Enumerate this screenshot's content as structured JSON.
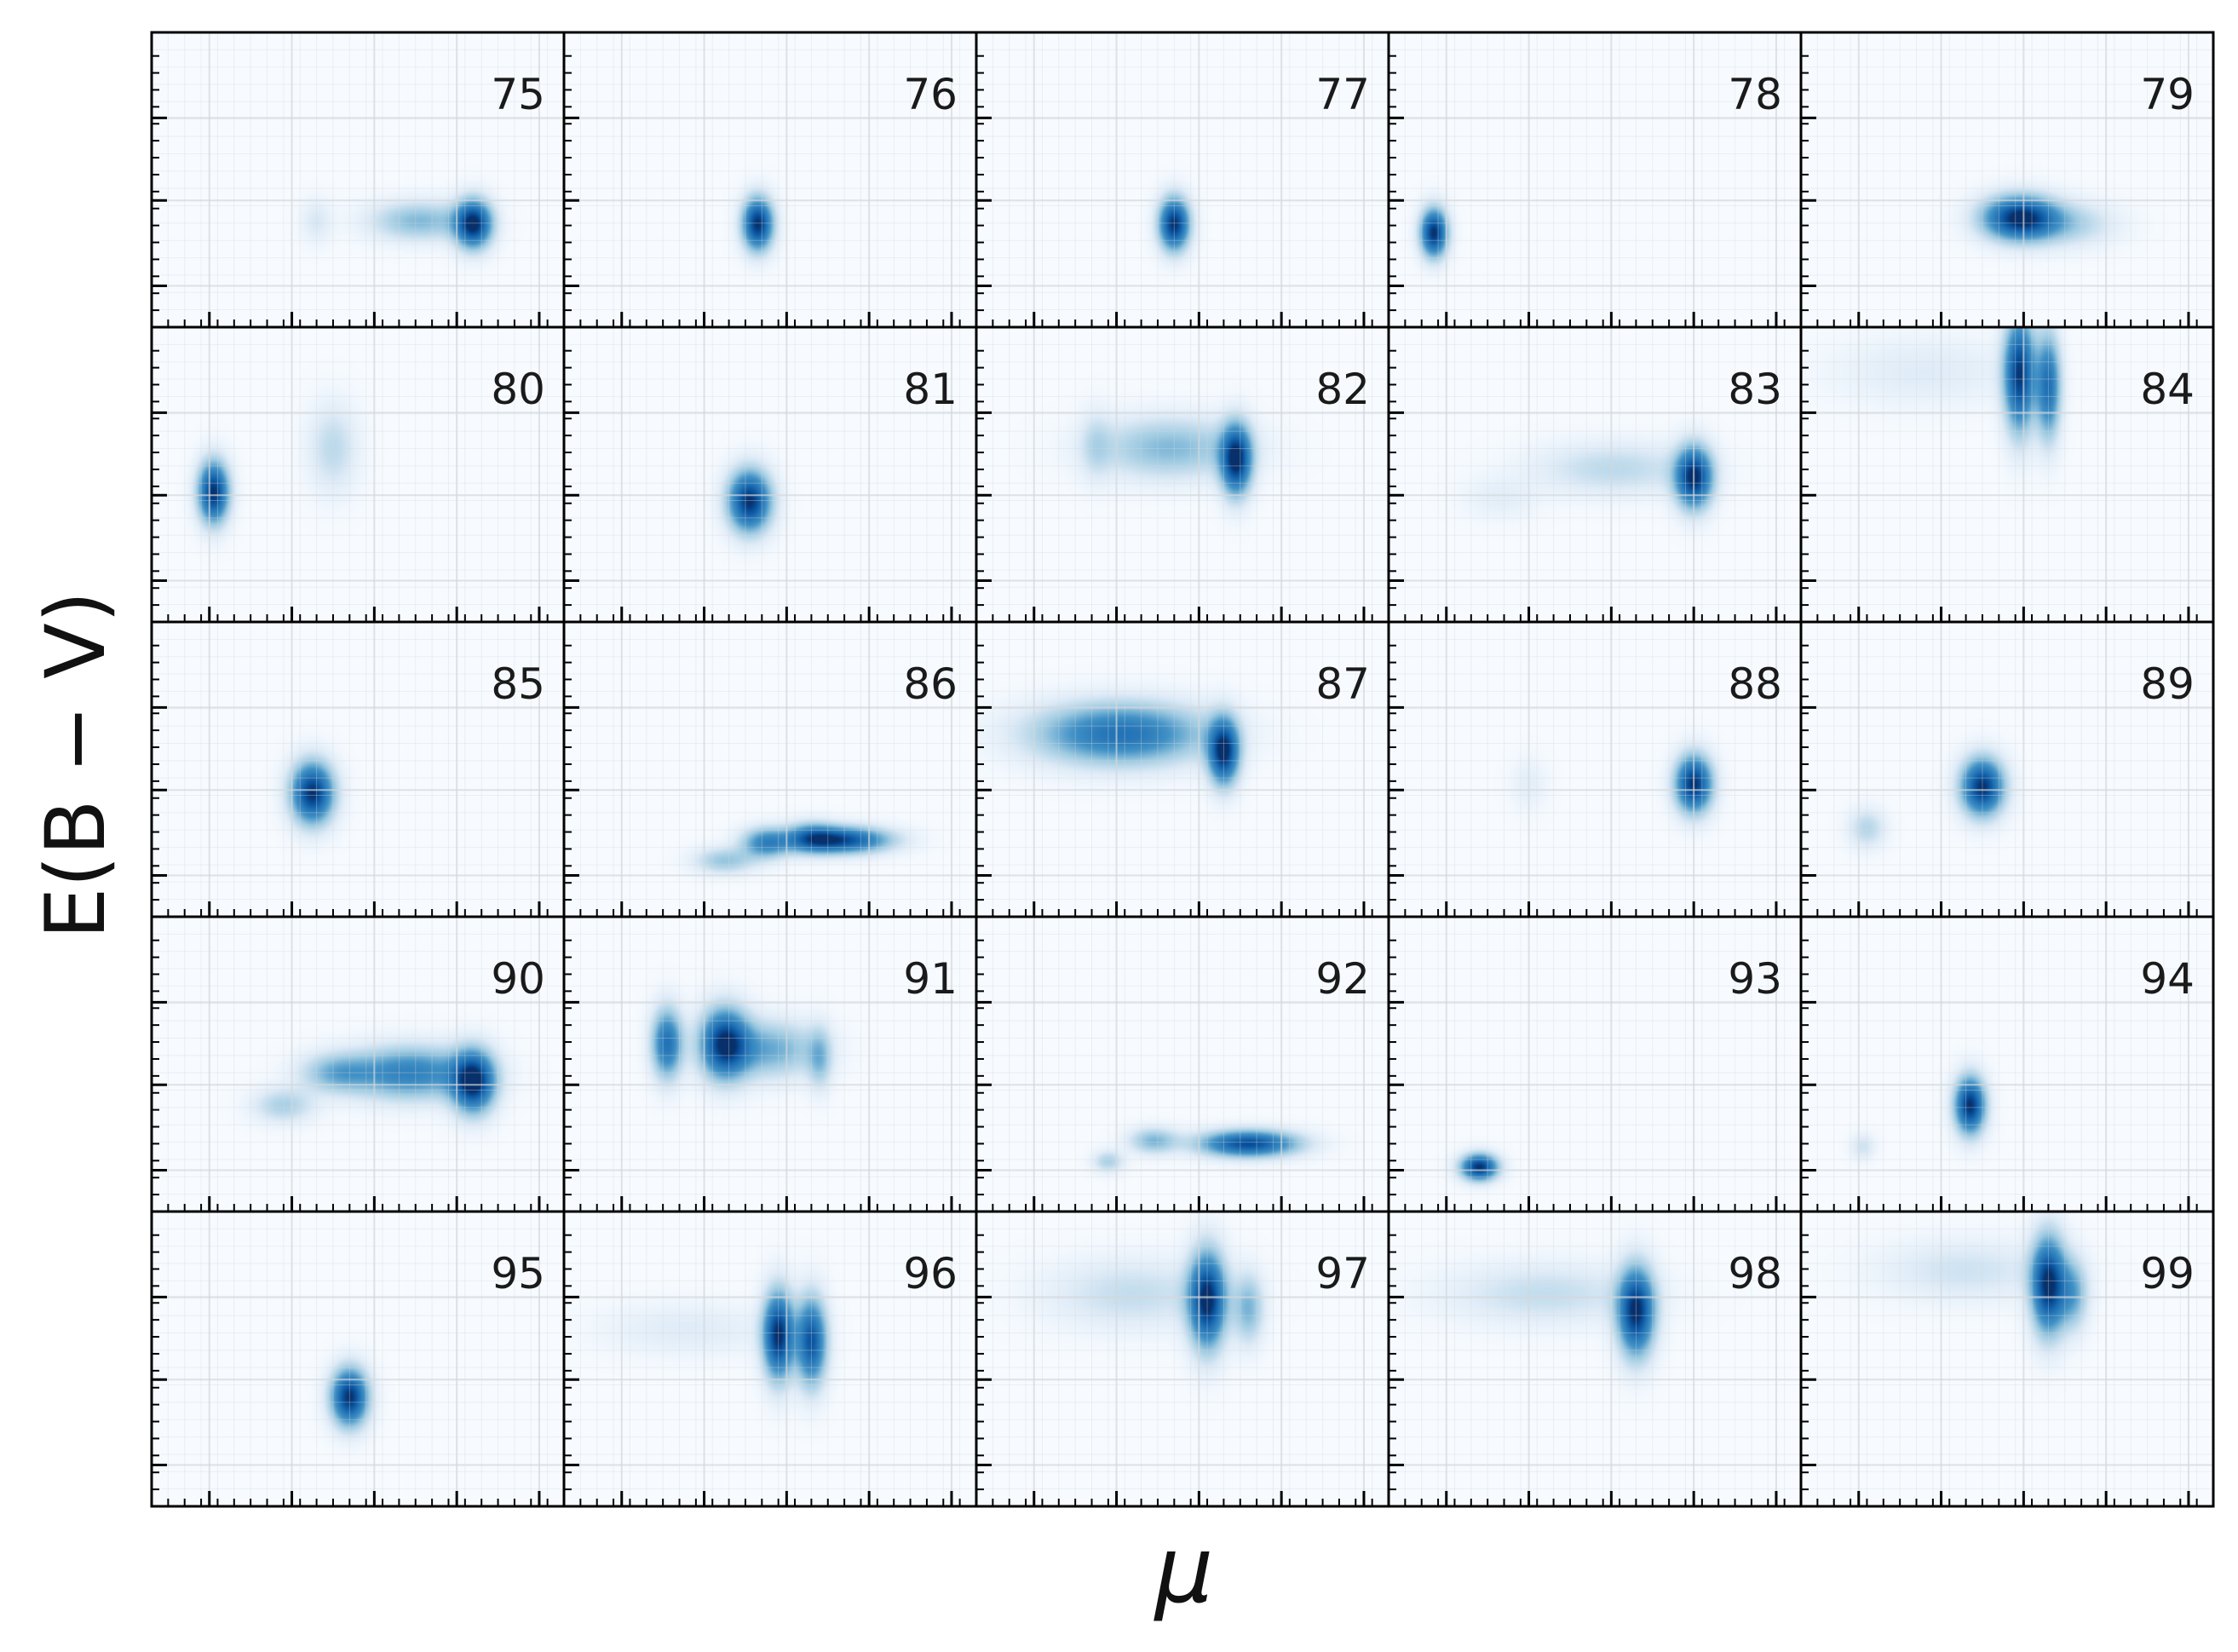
{
  "chart_data": {
    "type": "heatmap",
    "layout": {
      "rows": 5,
      "cols": 5
    },
    "xlabel": "μ",
    "ylabel": "E(B − V)",
    "grid": true,
    "tick_labels_shown": false,
    "colormap": "Blues",
    "colors": {
      "low": "#f7fbff",
      "high": "#08306b",
      "grid": "#d3d7dc",
      "frame": "#000000"
    },
    "panel_axes": {
      "xlim": [
        0,
        1
      ],
      "ylim": [
        0,
        1
      ]
    },
    "panels": [
      {
        "label": "75",
        "blobs": [
          {
            "x": 0.78,
            "y": 0.35,
            "sx": 0.03,
            "sy": 0.055,
            "amp": 1.0
          },
          {
            "x": 0.65,
            "y": 0.36,
            "sx": 0.08,
            "sy": 0.045,
            "amp": 0.35
          },
          {
            "x": 0.4,
            "y": 0.36,
            "sx": 0.025,
            "sy": 0.05,
            "amp": 0.12
          }
        ]
      },
      {
        "label": "76",
        "blobs": [
          {
            "x": 0.47,
            "y": 0.35,
            "sx": 0.025,
            "sy": 0.06,
            "amp": 1.0
          }
        ]
      },
      {
        "label": "77",
        "blobs": [
          {
            "x": 0.48,
            "y": 0.35,
            "sx": 0.025,
            "sy": 0.06,
            "amp": 1.0
          }
        ]
      },
      {
        "label": "78",
        "blobs": [
          {
            "x": 0.11,
            "y": 0.32,
            "sx": 0.022,
            "sy": 0.055,
            "amp": 1.0
          }
        ]
      },
      {
        "label": "79",
        "blobs": [
          {
            "x": 0.53,
            "y": 0.37,
            "sx": 0.06,
            "sy": 0.05,
            "amp": 1.0
          },
          {
            "x": 0.64,
            "y": 0.35,
            "sx": 0.08,
            "sy": 0.05,
            "amp": 0.25
          }
        ]
      },
      {
        "label": "80",
        "blobs": [
          {
            "x": 0.15,
            "y": 0.44,
            "sx": 0.025,
            "sy": 0.07,
            "amp": 1.0
          },
          {
            "x": 0.44,
            "y": 0.59,
            "sx": 0.04,
            "sy": 0.1,
            "amp": 0.2
          }
        ]
      },
      {
        "label": "81",
        "blobs": [
          {
            "x": 0.45,
            "y": 0.41,
            "sx": 0.035,
            "sy": 0.07,
            "amp": 1.0
          }
        ]
      },
      {
        "label": "82",
        "blobs": [
          {
            "x": 0.63,
            "y": 0.55,
            "sx": 0.025,
            "sy": 0.08,
            "amp": 1.0
          },
          {
            "x": 0.47,
            "y": 0.59,
            "sx": 0.12,
            "sy": 0.07,
            "amp": 0.35
          },
          {
            "x": 0.29,
            "y": 0.6,
            "sx": 0.025,
            "sy": 0.08,
            "amp": 0.15
          }
        ]
      },
      {
        "label": "83",
        "blobs": [
          {
            "x": 0.74,
            "y": 0.49,
            "sx": 0.03,
            "sy": 0.07,
            "amp": 1.0
          },
          {
            "x": 0.55,
            "y": 0.52,
            "sx": 0.13,
            "sy": 0.06,
            "amp": 0.2
          },
          {
            "x": 0.27,
            "y": 0.42,
            "sx": 0.06,
            "sy": 0.05,
            "amp": 0.08
          }
        ]
      },
      {
        "label": "84",
        "blobs": [
          {
            "x": 0.53,
            "y": 0.84,
            "sx": 0.025,
            "sy": 0.13,
            "amp": 0.95
          },
          {
            "x": 0.6,
            "y": 0.8,
            "sx": 0.02,
            "sy": 0.12,
            "amp": 0.7
          },
          {
            "x": 0.3,
            "y": 0.85,
            "sx": 0.15,
            "sy": 0.08,
            "amp": 0.1
          }
        ]
      },
      {
        "label": "85",
        "blobs": [
          {
            "x": 0.39,
            "y": 0.42,
            "sx": 0.035,
            "sy": 0.07,
            "amp": 1.0
          }
        ]
      },
      {
        "label": "86",
        "blobs": [
          {
            "x": 0.67,
            "y": 0.26,
            "sx": 0.08,
            "sy": 0.03,
            "amp": 0.9
          },
          {
            "x": 0.49,
            "y": 0.25,
            "sx": 0.04,
            "sy": 0.035,
            "amp": 0.55
          },
          {
            "x": 0.39,
            "y": 0.19,
            "sx": 0.05,
            "sy": 0.03,
            "amp": 0.3
          },
          {
            "x": 0.6,
            "y": 0.27,
            "sx": 0.04,
            "sy": 0.035,
            "amp": 0.4
          }
        ]
      },
      {
        "label": "87",
        "blobs": [
          {
            "x": 0.6,
            "y": 0.56,
            "sx": 0.025,
            "sy": 0.075,
            "amp": 1.0
          },
          {
            "x": 0.35,
            "y": 0.62,
            "sx": 0.14,
            "sy": 0.07,
            "amp": 0.7
          }
        ]
      },
      {
        "label": "88",
        "blobs": [
          {
            "x": 0.74,
            "y": 0.45,
            "sx": 0.03,
            "sy": 0.065,
            "amp": 1.0
          },
          {
            "x": 0.34,
            "y": 0.45,
            "sx": 0.03,
            "sy": 0.06,
            "amp": 0.08
          }
        ]
      },
      {
        "label": "89",
        "blobs": [
          {
            "x": 0.44,
            "y": 0.44,
            "sx": 0.035,
            "sy": 0.065,
            "amp": 1.0
          },
          {
            "x": 0.16,
            "y": 0.3,
            "sx": 0.03,
            "sy": 0.045,
            "amp": 0.22
          }
        ]
      },
      {
        "label": "90",
        "blobs": [
          {
            "x": 0.78,
            "y": 0.44,
            "sx": 0.035,
            "sy": 0.07,
            "amp": 1.0
          },
          {
            "x": 0.63,
            "y": 0.47,
            "sx": 0.1,
            "sy": 0.06,
            "amp": 0.6
          },
          {
            "x": 0.45,
            "y": 0.47,
            "sx": 0.06,
            "sy": 0.045,
            "amp": 0.35
          },
          {
            "x": 0.32,
            "y": 0.36,
            "sx": 0.05,
            "sy": 0.04,
            "amp": 0.25
          }
        ]
      },
      {
        "label": "91",
        "blobs": [
          {
            "x": 0.39,
            "y": 0.57,
            "sx": 0.04,
            "sy": 0.08,
            "amp": 0.95
          },
          {
            "x": 0.25,
            "y": 0.57,
            "sx": 0.025,
            "sy": 0.08,
            "amp": 0.7
          },
          {
            "x": 0.5,
            "y": 0.55,
            "sx": 0.08,
            "sy": 0.065,
            "amp": 0.4
          },
          {
            "x": 0.62,
            "y": 0.52,
            "sx": 0.02,
            "sy": 0.07,
            "amp": 0.3
          }
        ]
      },
      {
        "label": "92",
        "blobs": [
          {
            "x": 0.66,
            "y": 0.23,
            "sx": 0.08,
            "sy": 0.03,
            "amp": 0.9
          },
          {
            "x": 0.43,
            "y": 0.24,
            "sx": 0.04,
            "sy": 0.03,
            "amp": 0.35
          },
          {
            "x": 0.32,
            "y": 0.17,
            "sx": 0.025,
            "sy": 0.025,
            "amp": 0.25
          }
        ]
      },
      {
        "label": "93",
        "blobs": [
          {
            "x": 0.22,
            "y": 0.15,
            "sx": 0.03,
            "sy": 0.03,
            "amp": 1.0
          }
        ]
      },
      {
        "label": "94",
        "blobs": [
          {
            "x": 0.41,
            "y": 0.36,
            "sx": 0.025,
            "sy": 0.065,
            "amp": 1.0
          },
          {
            "x": 0.15,
            "y": 0.22,
            "sx": 0.02,
            "sy": 0.03,
            "amp": 0.15
          }
        ]
      },
      {
        "label": "95",
        "blobs": [
          {
            "x": 0.48,
            "y": 0.37,
            "sx": 0.03,
            "sy": 0.065,
            "amp": 1.0
          }
        ]
      },
      {
        "label": "96",
        "blobs": [
          {
            "x": 0.52,
            "y": 0.58,
            "sx": 0.025,
            "sy": 0.1,
            "amp": 1.0
          },
          {
            "x": 0.6,
            "y": 0.56,
            "sx": 0.025,
            "sy": 0.1,
            "amp": 0.85
          },
          {
            "x": 0.3,
            "y": 0.6,
            "sx": 0.14,
            "sy": 0.06,
            "amp": 0.1
          }
        ]
      },
      {
        "label": "97",
        "blobs": [
          {
            "x": 0.56,
            "y": 0.7,
            "sx": 0.03,
            "sy": 0.11,
            "amp": 1.0
          },
          {
            "x": 0.38,
            "y": 0.72,
            "sx": 0.14,
            "sy": 0.08,
            "amp": 0.18
          },
          {
            "x": 0.66,
            "y": 0.67,
            "sx": 0.025,
            "sy": 0.08,
            "amp": 0.35
          }
        ]
      },
      {
        "label": "98",
        "blobs": [
          {
            "x": 0.6,
            "y": 0.66,
            "sx": 0.03,
            "sy": 0.1,
            "amp": 1.0
          },
          {
            "x": 0.38,
            "y": 0.72,
            "sx": 0.16,
            "sy": 0.07,
            "amp": 0.18
          }
        ]
      },
      {
        "label": "99",
        "blobs": [
          {
            "x": 0.6,
            "y": 0.75,
            "sx": 0.028,
            "sy": 0.11,
            "amp": 1.0
          },
          {
            "x": 0.4,
            "y": 0.8,
            "sx": 0.14,
            "sy": 0.07,
            "amp": 0.15
          },
          {
            "x": 0.66,
            "y": 0.72,
            "sx": 0.025,
            "sy": 0.08,
            "amp": 0.4
          }
        ]
      }
    ]
  }
}
